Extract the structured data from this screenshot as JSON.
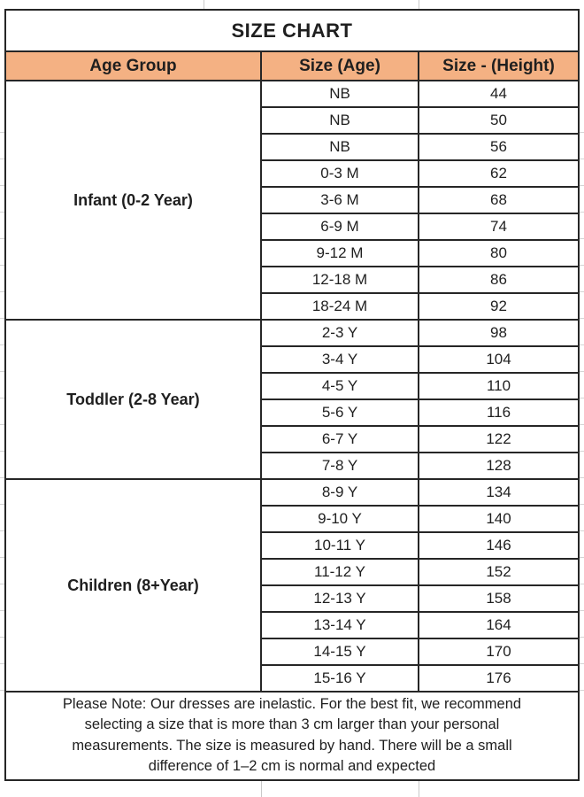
{
  "colors": {
    "header_bg": "#F4B183",
    "border": "#262626",
    "text": "#1F1F1F",
    "gridline_artifact": "#C9C9C9"
  },
  "chart_data": {
    "type": "table",
    "title": "SIZE CHART",
    "columns": [
      "Age Group",
      "Size (Age)",
      "Size - (Height)"
    ],
    "sections": [
      {
        "group": "Infant (0-2 Year)",
        "rows": [
          [
            "NB",
            "44"
          ],
          [
            "NB",
            "50"
          ],
          [
            "NB",
            "56"
          ],
          [
            "0-3 M",
            "62"
          ],
          [
            "3-6 M",
            "68"
          ],
          [
            "6-9 M",
            "74"
          ],
          [
            "9-12 M",
            "80"
          ],
          [
            "12-18 M",
            "86"
          ],
          [
            "18-24 M",
            "92"
          ]
        ]
      },
      {
        "group": "Toddler (2-8 Year)",
        "rows": [
          [
            "2-3 Y",
            "98"
          ],
          [
            "3-4 Y",
            "104"
          ],
          [
            "4-5 Y",
            "110"
          ],
          [
            "5-6 Y",
            "116"
          ],
          [
            "6-7 Y",
            "122"
          ],
          [
            "7-8 Y",
            "128"
          ]
        ]
      },
      {
        "group": "Children (8+Year)",
        "rows": [
          [
            "8-9 Y",
            "134"
          ],
          [
            "9-10 Y",
            "140"
          ],
          [
            "10-11 Y",
            "146"
          ],
          [
            "11-12 Y",
            "152"
          ],
          [
            "12-13 Y",
            "158"
          ],
          [
            "13-14 Y",
            "164"
          ],
          [
            "14-15 Y",
            "170"
          ],
          [
            "15-16 Y",
            "176"
          ]
        ]
      }
    ],
    "note": "Please Note: Our dresses are inelastic. For the best fit, we recommend selecting a size that is more than 3 cm larger than your personal measurements. The size is measured by hand. There will be a small difference of 1–2 cm is normal and expected"
  }
}
